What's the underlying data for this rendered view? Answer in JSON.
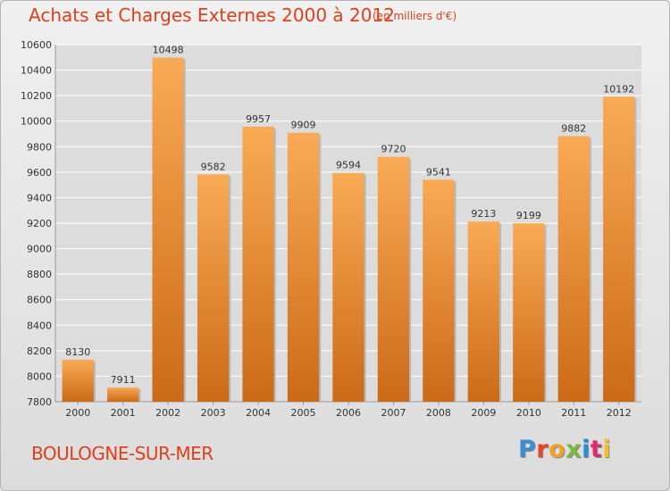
{
  "header": {
    "title": "Achats et Charges Externes 2000 à 2012",
    "subtitle": "(en milliers d'€)"
  },
  "footer": {
    "city": "BOULOGNE-SUR-MER",
    "logo_text": "Proxiti",
    "logo_colors": [
      "#3c8fd4",
      "#e8462a",
      "#f1a02a",
      "#79b83a",
      "#2a8ed4",
      "#e02a6f",
      "#f1c02a"
    ]
  },
  "colors": {
    "bar_light": "#f9aa55",
    "bar_dark": "#cb6a18",
    "title": "#df3f1a",
    "grid": "#ffffff",
    "plot_bg": "#dcdcdc"
  },
  "chart_data": {
    "type": "bar",
    "categories": [
      "2000",
      "2001",
      "2002",
      "2003",
      "2004",
      "2005",
      "2006",
      "2007",
      "2008",
      "2009",
      "2010",
      "2011",
      "2012"
    ],
    "values": [
      8130,
      7911,
      10498,
      9582,
      9957,
      9909,
      9594,
      9720,
      9541,
      9213,
      9199,
      9882,
      10192
    ],
    "ylim": [
      7800,
      10600
    ],
    "yticks": [
      7800,
      8000,
      8200,
      8400,
      8600,
      8800,
      9000,
      9200,
      9400,
      9600,
      9800,
      10000,
      10200,
      10400,
      10600
    ],
    "grid": true,
    "data_labels": true
  }
}
